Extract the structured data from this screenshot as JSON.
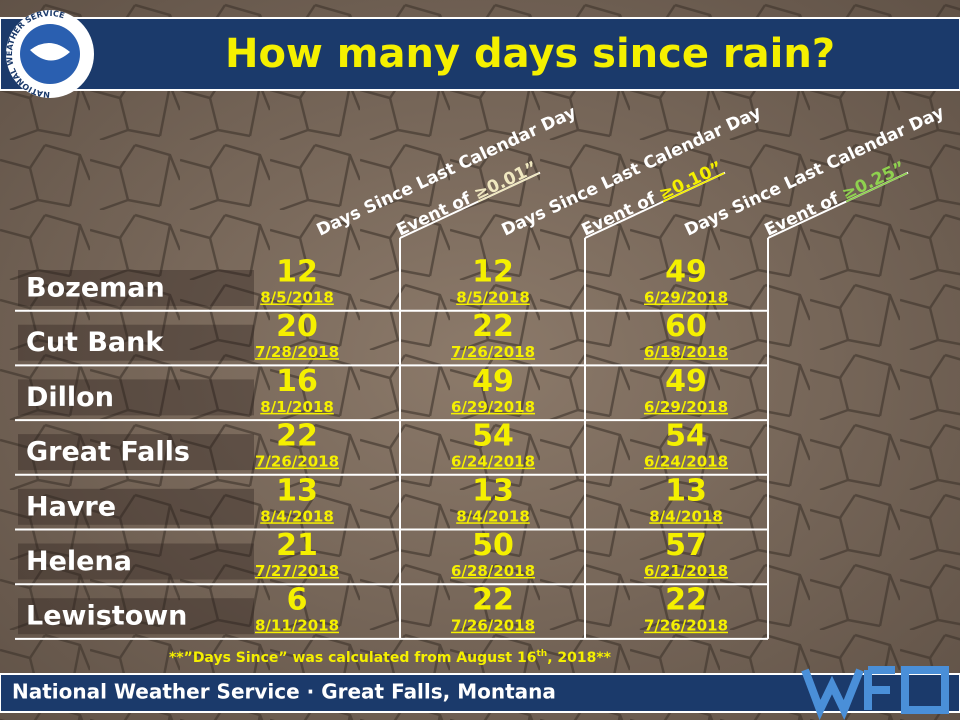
{
  "header": {
    "title": "How many days since rain?",
    "logo_text": "NATIONAL WEATHER SERVICE"
  },
  "columns": [
    {
      "line1": "Days Since Last Calendar Day",
      "line2": "Event of ",
      "threshold": "≥0.01”"
    },
    {
      "line1": "Days Since Last Calendar Day",
      "line2": "Event of ",
      "threshold": "≥0.10”"
    },
    {
      "line1": "Days Since Last Calendar Day",
      "line2": "Event of ",
      "threshold": "≥0.25”"
    }
  ],
  "table": {
    "rows": [
      {
        "city": "Bozeman",
        "cells": [
          {
            "days": 12,
            "date": "8/5/2018"
          },
          {
            "days": 12,
            "date": "8/5/2018"
          },
          {
            "days": 49,
            "date": "6/29/2018"
          }
        ]
      },
      {
        "city": "Cut Bank",
        "cells": [
          {
            "days": 20,
            "date": "7/28/2018"
          },
          {
            "days": 22,
            "date": "7/26/2018"
          },
          {
            "days": 60,
            "date": "6/18/2018"
          }
        ]
      },
      {
        "city": "Dillon",
        "cells": [
          {
            "days": 16,
            "date": "8/1/2018"
          },
          {
            "days": 49,
            "date": "6/29/2018"
          },
          {
            "days": 49,
            "date": "6/29/2018"
          }
        ]
      },
      {
        "city": "Great Falls",
        "cells": [
          {
            "days": 22,
            "date": "7/26/2018"
          },
          {
            "days": 54,
            "date": "6/24/2018"
          },
          {
            "days": 54,
            "date": "6/24/2018"
          }
        ]
      },
      {
        "city": "Havre",
        "cells": [
          {
            "days": 13,
            "date": "8/4/2018"
          },
          {
            "days": 13,
            "date": "8/4/2018"
          },
          {
            "days": 13,
            "date": "8/4/2018"
          }
        ]
      },
      {
        "city": "Helena",
        "cells": [
          {
            "days": 21,
            "date": "7/27/2018"
          },
          {
            "days": 50,
            "date": "6/28/2018"
          },
          {
            "days": 57,
            "date": "6/21/2018"
          }
        ]
      },
      {
        "city": "Lewistown",
        "cells": [
          {
            "days": 6,
            "date": "8/11/2018"
          },
          {
            "days": 22,
            "date": "7/26/2018"
          },
          {
            "days": 22,
            "date": "7/26/2018"
          }
        ]
      }
    ]
  },
  "footnote": {
    "before": "**”Days Since” was calculated from August 16",
    "sup": "th",
    "after": ", 2018**"
  },
  "footer": {
    "text": "National Weather Service · Great Falls, Montana"
  }
}
